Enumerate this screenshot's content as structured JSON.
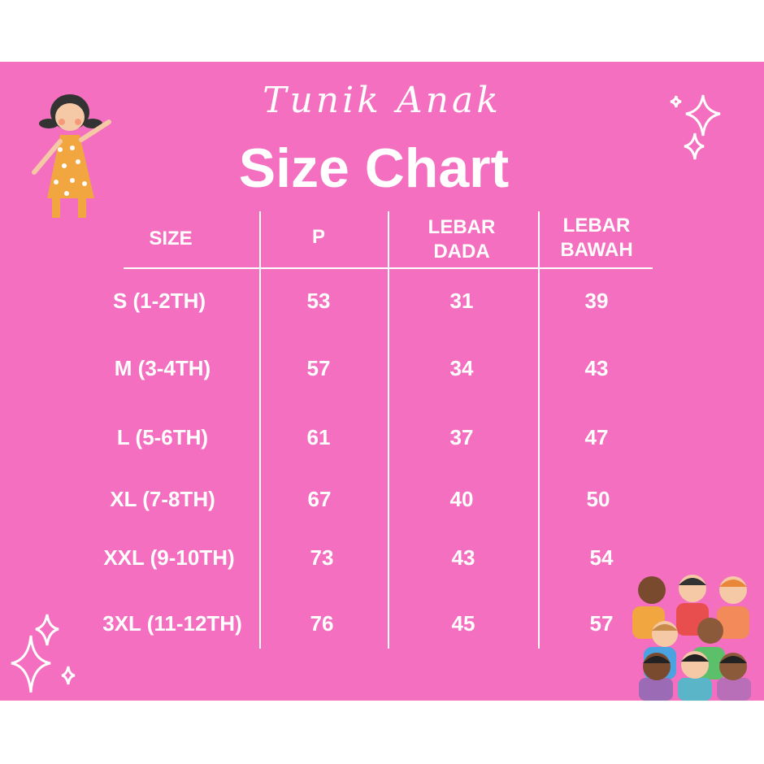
{
  "title_script": "Tunik Anak",
  "title": "Size Chart",
  "colors": {
    "background": "#f46fbf",
    "text": "#ffffff"
  },
  "table": {
    "headers": [
      "SIZE",
      "P",
      "LEBAR DADA",
      "LEBAR BAWAH"
    ],
    "header_lines": [
      [
        "SIZE"
      ],
      [
        "P"
      ],
      [
        "LEBAR",
        "DADA"
      ],
      [
        "LEBAR",
        "BAWAH"
      ]
    ],
    "rows": [
      [
        "S (1-2TH)",
        "53",
        "31",
        "39"
      ],
      [
        "M (3-4TH)",
        "57",
        "34",
        "43"
      ],
      [
        "L (5-6TH)",
        "61",
        "37",
        "47"
      ],
      [
        "XL (7-8TH)",
        "67",
        "40",
        "50"
      ],
      [
        "XXL (9-10TH)",
        "73",
        "43",
        "54"
      ],
      [
        "3XL (11-12TH)",
        "76",
        "45",
        "57"
      ]
    ]
  },
  "decorations": [
    "girl-illustration",
    "sparkle-icon",
    "kids-group-illustration"
  ]
}
